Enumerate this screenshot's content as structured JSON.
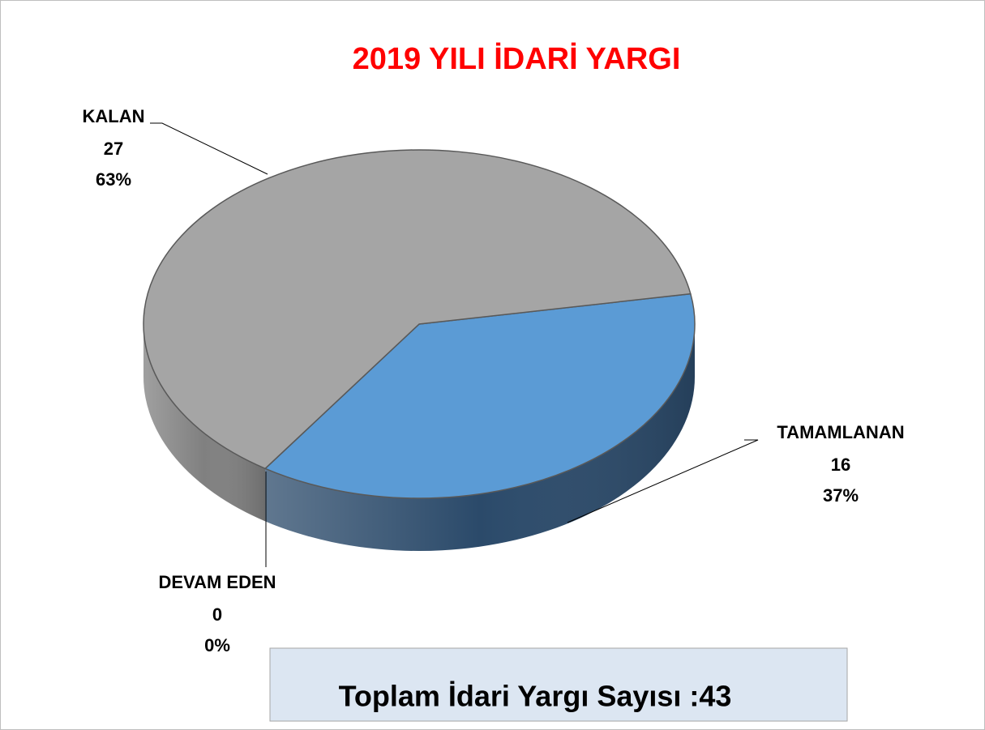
{
  "chart_data": {
    "type": "pie",
    "title": "2019 YILI İDARİ YARGI",
    "categories": [
      "TAMAMLANAN",
      "DEVAM EDEN",
      "KALAN"
    ],
    "values": [
      16,
      0,
      27
    ],
    "percent_labels": [
      "37%",
      "0%",
      "63%"
    ],
    "colors": [
      "#5b9bd5",
      "#ed7d31",
      "#a5a5a5"
    ],
    "side_colors": [
      "#2b4a6a",
      "#8a4a1e",
      "#808080"
    ],
    "annotation": "Toplam İdari Yargı Sayısı :43"
  }
}
